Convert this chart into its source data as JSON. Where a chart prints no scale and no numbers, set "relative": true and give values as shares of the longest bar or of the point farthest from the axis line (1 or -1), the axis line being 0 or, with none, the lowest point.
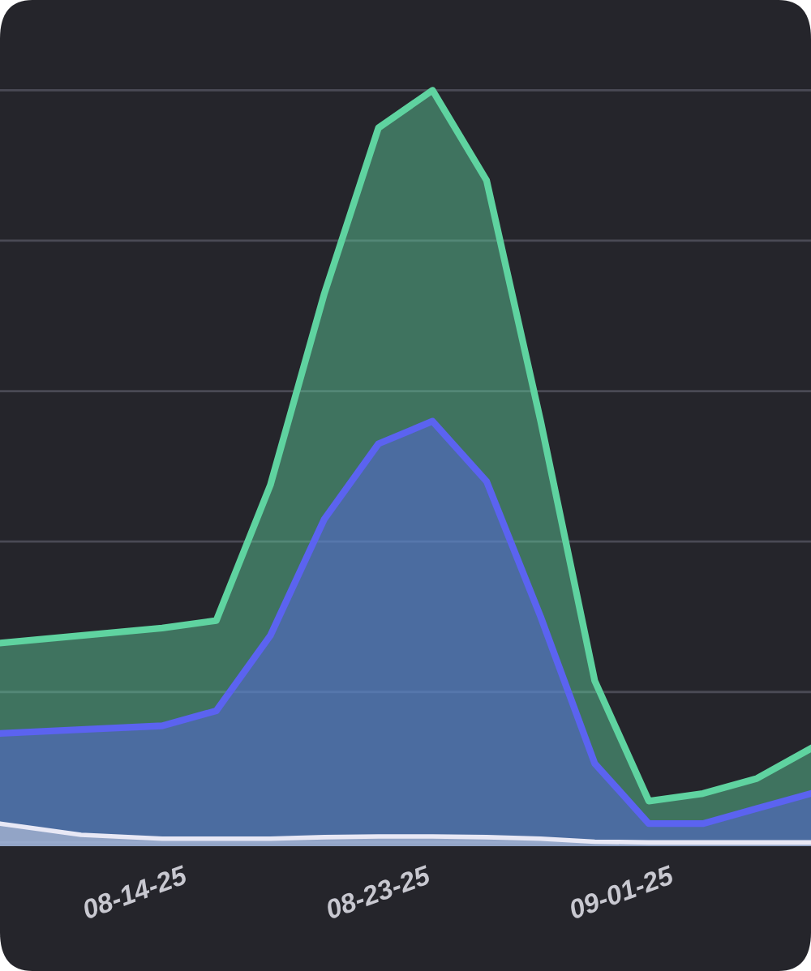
{
  "chart_data": {
    "type": "area",
    "relative": true,
    "grid": "y",
    "x": [
      "2025-08-09",
      "2025-08-12",
      "2025-08-15",
      "2025-08-17",
      "2025-08-19",
      "2025-08-21",
      "2025-08-23",
      "2025-08-25",
      "2025-08-27",
      "2025-08-29",
      "2025-08-31",
      "2025-09-02",
      "2025-09-04",
      "2025-09-06",
      "2025-09-08"
    ],
    "xlim": [
      "2025-08-09",
      "2025-09-08"
    ],
    "xticks": [
      {
        "value": "2025-08-14",
        "label": "08-14-25"
      },
      {
        "value": "2025-08-23",
        "label": "08-23-25"
      },
      {
        "value": "2025-09-01",
        "label": "09-01-25"
      }
    ],
    "series": [
      {
        "color": "#5fd3a0",
        "values": [
          0.265,
          0.275,
          0.285,
          0.295,
          0.475,
          0.73,
          0.95,
          1.0,
          0.88,
          0.56,
          0.215,
          0.055,
          0.065,
          0.085,
          0.125
        ]
      },
      {
        "color": "#5b63f0",
        "values": [
          0.145,
          0.15,
          0.155,
          0.175,
          0.275,
          0.43,
          0.53,
          0.56,
          0.48,
          0.3,
          0.105,
          0.025,
          0.025,
          0.045,
          0.065
        ]
      },
      {
        "color": "#e8e8f5",
        "values": [
          0.025,
          0.01,
          0.005,
          0.005,
          0.005,
          0.007,
          0.008,
          0.008,
          0.007,
          0.005,
          0.001,
          0,
          0,
          0,
          0
        ]
      }
    ]
  }
}
